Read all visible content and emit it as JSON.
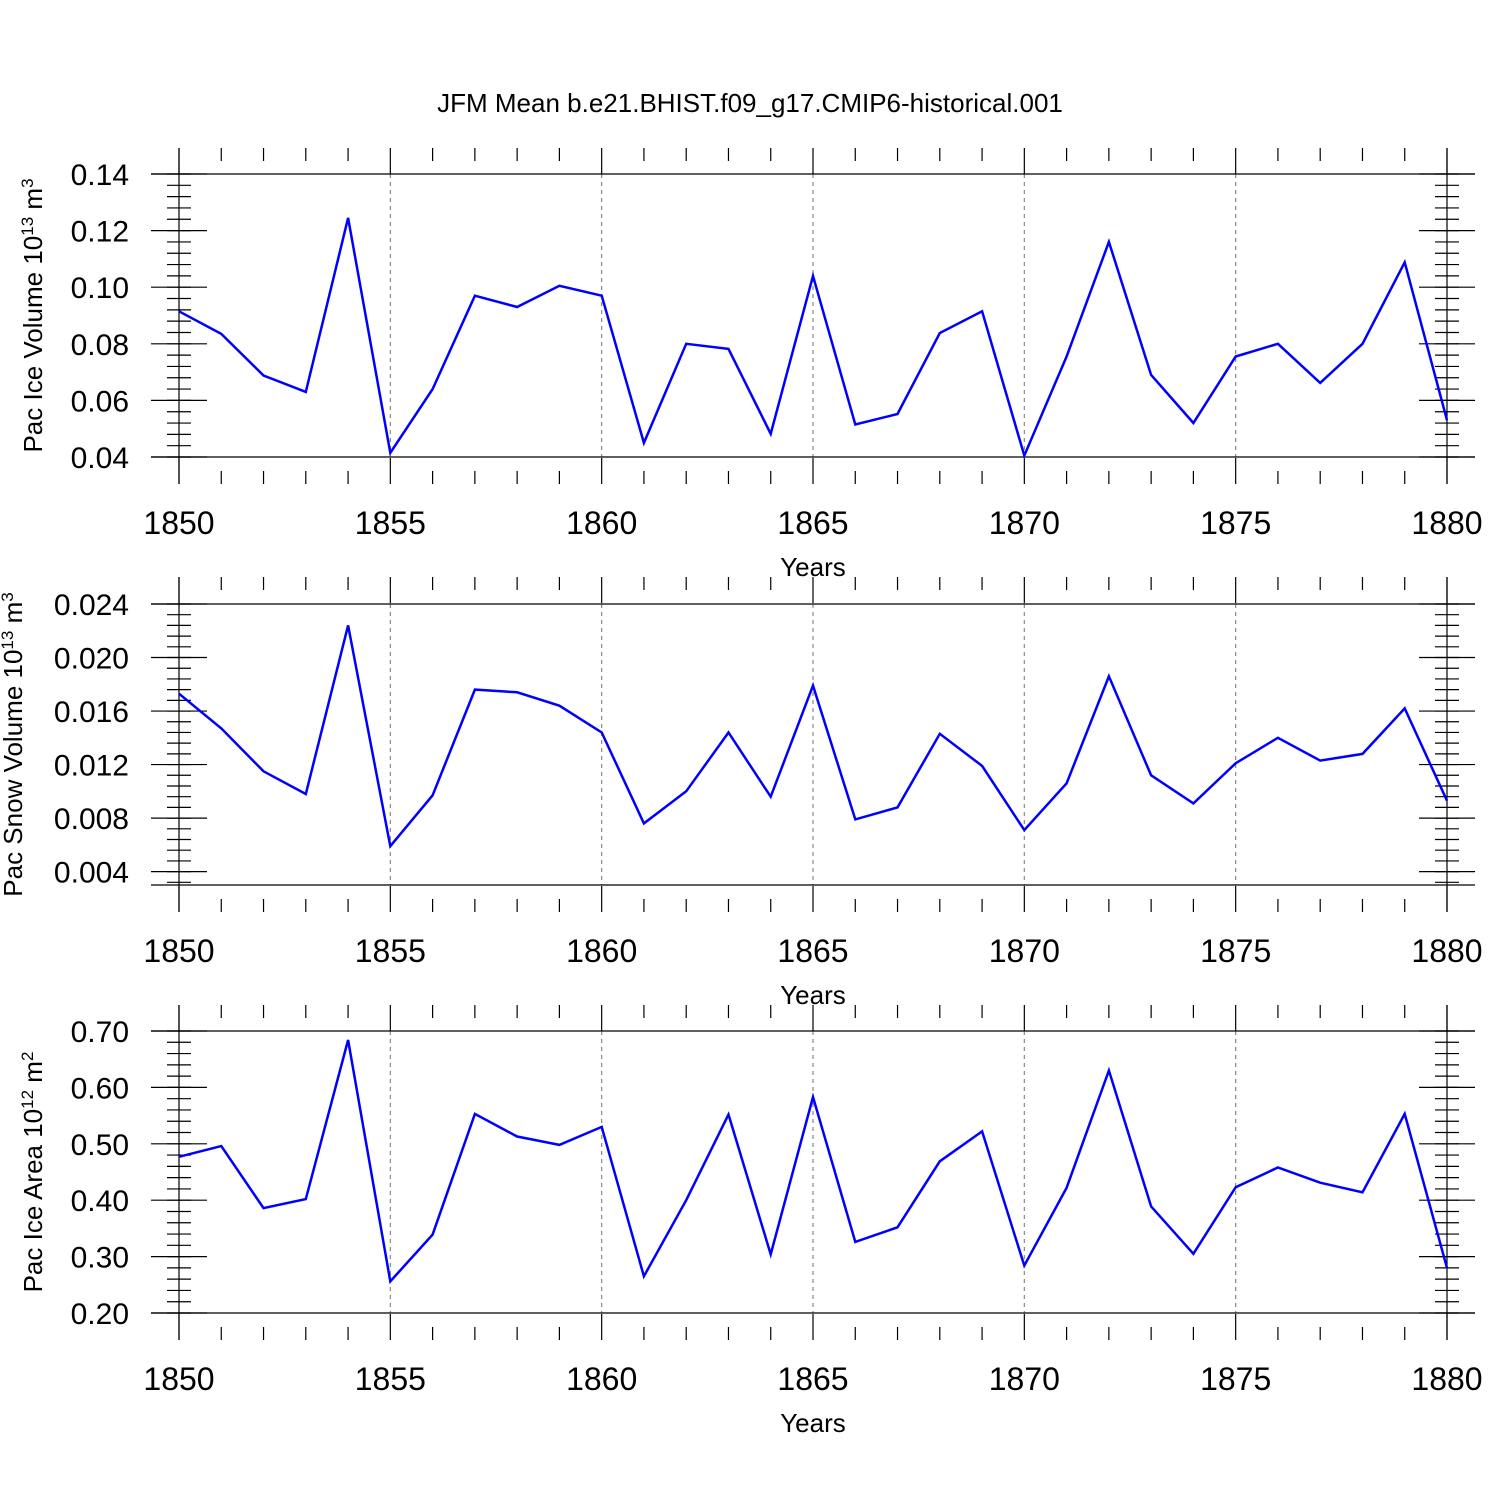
{
  "title": "JFM Mean b.e21.BHIST.f09_g17.CMIP6-historical.001",
  "colors": {
    "line": "#0000ff",
    "grid": "#888888",
    "axis": "#000000"
  },
  "chart_data": [
    {
      "type": "line",
      "xlabel": "Years",
      "ylabel": {
        "main": "Pac Ice Volume 10",
        "exp": "13",
        "unit": " m",
        "unit_exp": "3"
      },
      "xlim": [
        1850,
        1880
      ],
      "ylim": [
        0.04,
        0.14
      ],
      "x_ticks": [
        1850,
        1855,
        1860,
        1865,
        1870,
        1875,
        1880
      ],
      "x_tick_labels": [
        "1850",
        "1855",
        "1860",
        "1865",
        "1870",
        "1875",
        "1880"
      ],
      "y_ticks": [
        0.04,
        0.06,
        0.08,
        0.1,
        0.12,
        0.14
      ],
      "y_tick_labels": [
        "0.04",
        "0.06",
        "0.08",
        "0.10",
        "0.12",
        "0.14"
      ],
      "grid": "dashed vertical at major x ticks",
      "x": [
        1850,
        1851,
        1852,
        1853,
        1854,
        1855,
        1856,
        1857,
        1858,
        1859,
        1860,
        1861,
        1862,
        1863,
        1864,
        1865,
        1866,
        1867,
        1868,
        1869,
        1870,
        1871,
        1872,
        1873,
        1874,
        1875,
        1876,
        1877,
        1878,
        1879,
        1880
      ],
      "values": [
        0.0915,
        0.0835,
        0.0688,
        0.063,
        0.1245,
        0.0415,
        0.064,
        0.097,
        0.093,
        0.1005,
        0.097,
        0.045,
        0.08,
        0.0782,
        0.0482,
        0.104,
        0.0515,
        0.0552,
        0.0838,
        0.0915,
        0.0405,
        0.0755,
        0.116,
        0.069,
        0.052,
        0.0755,
        0.08,
        0.0662,
        0.08,
        0.1088,
        0.053
      ]
    },
    {
      "type": "line",
      "xlabel": "Years",
      "ylabel": {
        "main": "Pac Snow Volume 10",
        "exp": "13",
        "unit": " m",
        "unit_exp": "3"
      },
      "xlim": [
        1850,
        1880
      ],
      "ylim": [
        0.003,
        0.024
      ],
      "x_ticks": [
        1850,
        1855,
        1860,
        1865,
        1870,
        1875,
        1880
      ],
      "x_tick_labels": [
        "1850",
        "1855",
        "1860",
        "1865",
        "1870",
        "1875",
        "1880"
      ],
      "y_ticks": [
        0.004,
        0.008,
        0.012,
        0.016,
        0.02,
        0.024
      ],
      "y_tick_labels": [
        "0.004",
        "0.008",
        "0.012",
        "0.016",
        "0.020",
        "0.024"
      ],
      "grid": "dashed vertical at major x ticks",
      "x": [
        1850,
        1851,
        1852,
        1853,
        1854,
        1855,
        1856,
        1857,
        1858,
        1859,
        1860,
        1861,
        1862,
        1863,
        1864,
        1865,
        1866,
        1867,
        1868,
        1869,
        1870,
        1871,
        1872,
        1873,
        1874,
        1875,
        1876,
        1877,
        1878,
        1879,
        1880
      ],
      "values": [
        0.0173,
        0.0147,
        0.0115,
        0.0098,
        0.0224,
        0.0059,
        0.0097,
        0.0176,
        0.0174,
        0.0164,
        0.0144,
        0.0076,
        0.01,
        0.0144,
        0.0096,
        0.0179,
        0.0079,
        0.0088,
        0.0143,
        0.0119,
        0.0071,
        0.0106,
        0.0186,
        0.0112,
        0.0091,
        0.0121,
        0.014,
        0.0123,
        0.0128,
        0.0162,
        0.0093
      ]
    },
    {
      "type": "line",
      "xlabel": "Years",
      "ylabel": {
        "main": "Pac Ice Area 10",
        "exp": "12",
        "unit": " m",
        "unit_exp": "2"
      },
      "xlim": [
        1850,
        1880
      ],
      "ylim": [
        0.2,
        0.7
      ],
      "x_ticks": [
        1850,
        1855,
        1860,
        1865,
        1870,
        1875,
        1880
      ],
      "x_tick_labels": [
        "1850",
        "1855",
        "1860",
        "1865",
        "1870",
        "1875",
        "1880"
      ],
      "y_ticks": [
        0.2,
        0.3,
        0.4,
        0.5,
        0.6,
        0.7
      ],
      "y_tick_labels": [
        "0.20",
        "0.30",
        "0.40",
        "0.50",
        "0.60",
        "0.70"
      ],
      "grid": "dashed vertical at major x ticks",
      "x": [
        1850,
        1851,
        1852,
        1853,
        1854,
        1855,
        1856,
        1857,
        1858,
        1859,
        1860,
        1861,
        1862,
        1863,
        1864,
        1865,
        1866,
        1867,
        1868,
        1869,
        1870,
        1871,
        1872,
        1873,
        1874,
        1875,
        1876,
        1877,
        1878,
        1879,
        1880
      ],
      "values": [
        0.477,
        0.496,
        0.386,
        0.402,
        0.684,
        0.256,
        0.339,
        0.553,
        0.513,
        0.498,
        0.53,
        0.265,
        0.4,
        0.552,
        0.304,
        0.583,
        0.326,
        0.352,
        0.469,
        0.522,
        0.284,
        0.422,
        0.63,
        0.389,
        0.305,
        0.423,
        0.458,
        0.431,
        0.414,
        0.553,
        0.28
      ]
    }
  ]
}
